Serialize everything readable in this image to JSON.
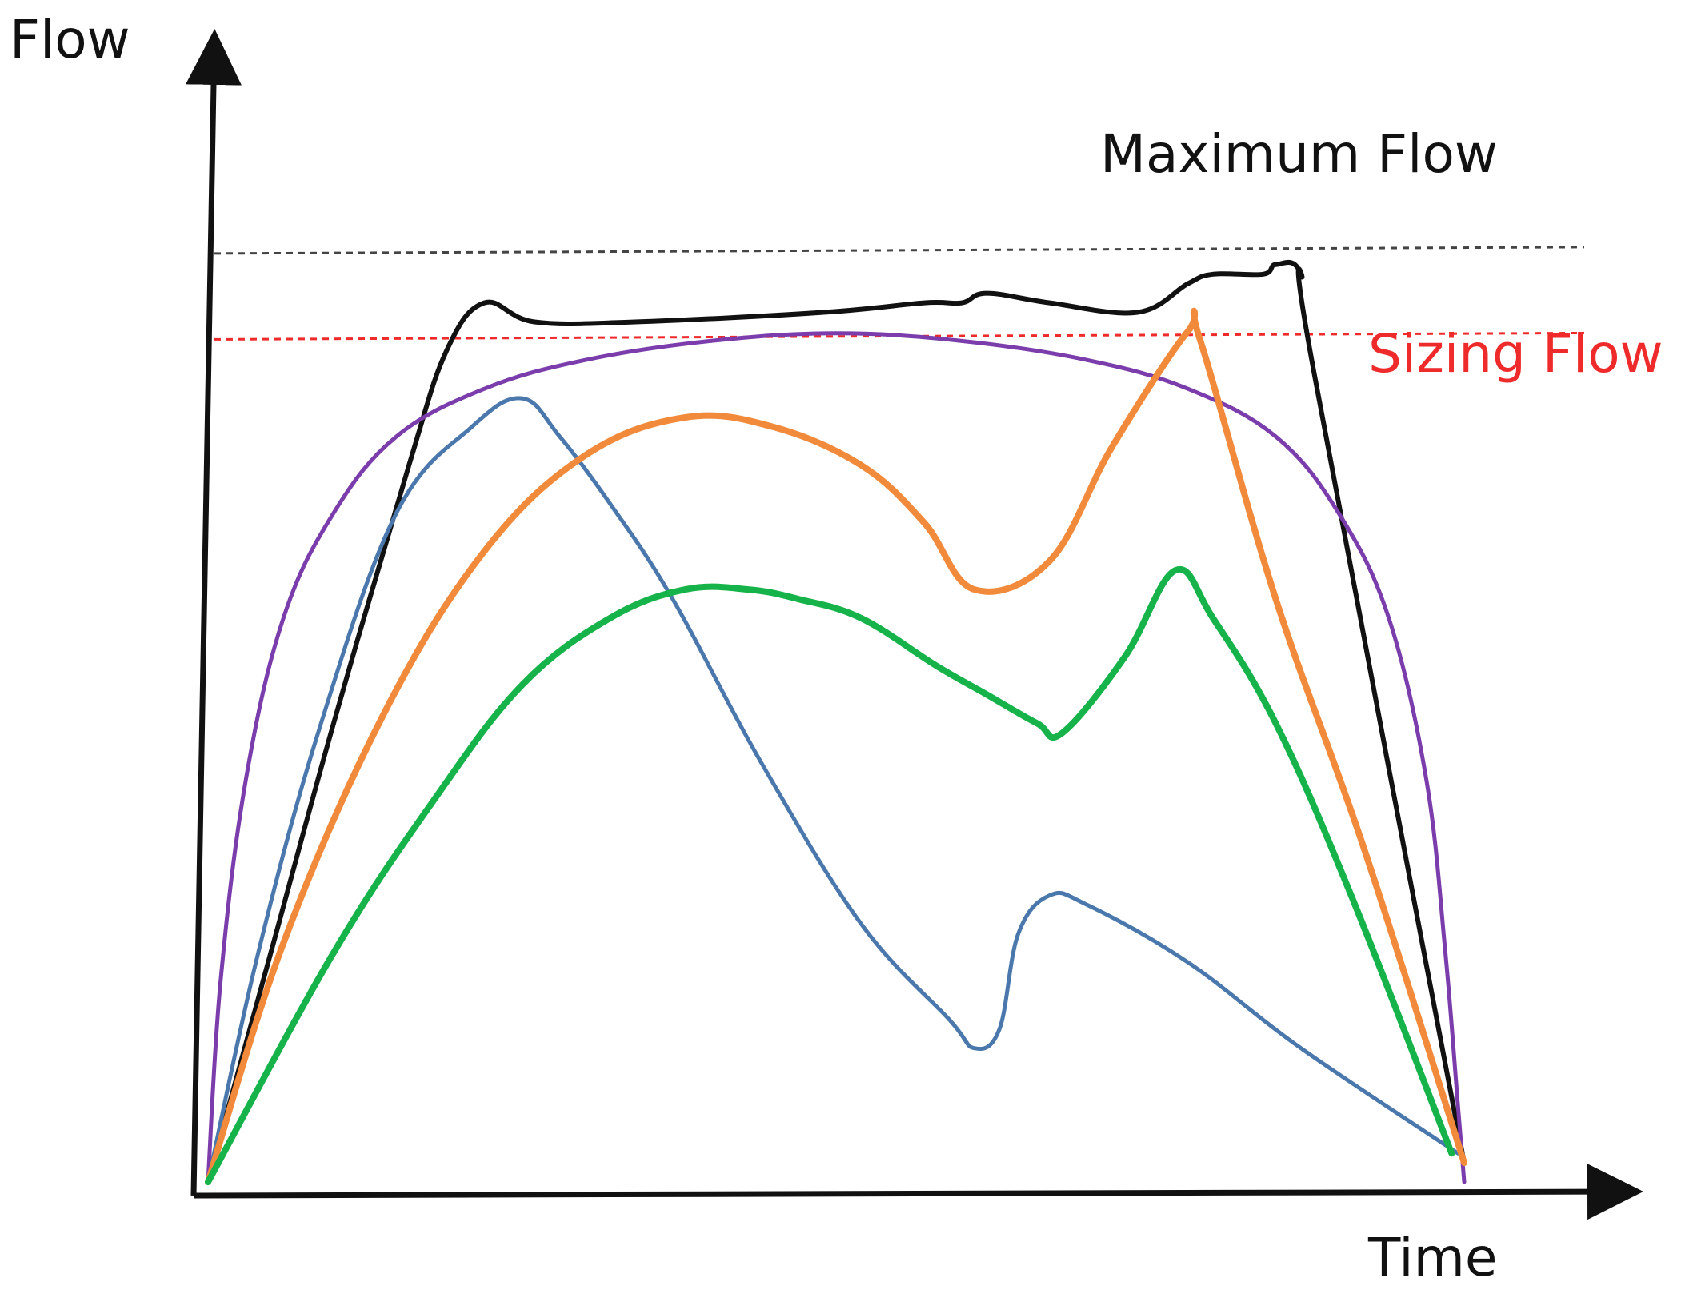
{
  "chart_data": {
    "type": "line",
    "title": "",
    "xlabel": "Time",
    "ylabel": "Flow",
    "xlim": [
      0,
      100
    ],
    "ylim": [
      0,
      100
    ],
    "grid": false,
    "reference_lines": [
      {
        "name": "maximum-flow",
        "label": "Maximum Flow",
        "y": 97.5,
        "color": "#444444"
      },
      {
        "name": "sizing-flow",
        "label": "Sizing Flow",
        "y": 88.5,
        "color": "#ee2a2a"
      }
    ],
    "series": [
      {
        "name": "black",
        "color": "#111111",
        "x": [
          0,
          5,
          10,
          16,
          19,
          22,
          26,
          34,
          49,
          57,
          60,
          62,
          67,
          74,
          78,
          80,
          84,
          85,
          87,
          88,
          100
        ],
        "y": [
          0,
          24,
          48,
          75,
          87,
          92,
          90,
          90,
          91,
          92,
          92,
          93,
          92,
          91,
          94,
          95,
          95,
          96,
          95,
          85,
          2
        ]
      },
      {
        "name": "purple",
        "color": "#7a3dab",
        "x": [
          0,
          1,
          3,
          6,
          10,
          15,
          22,
          30,
          40,
          50,
          60,
          70,
          78,
          85,
          90,
          94,
          97,
          98.5,
          99.5,
          100
        ],
        "y": [
          0,
          21,
          42,
          59,
          70,
          78,
          83,
          86,
          88,
          88.8,
          88,
          86,
          83,
          78,
          70,
          59,
          42,
          24,
          8,
          0
        ]
      },
      {
        "name": "blue",
        "color": "#4a78ad",
        "x": [
          0,
          4,
          9,
          15,
          21,
          25,
          28,
          32,
          37,
          44,
          52,
          59,
          61,
          63,
          64.5,
          67,
          70,
          78,
          87,
          99.5
        ],
        "y": [
          0,
          24,
          48,
          70,
          79,
          82,
          78,
          71,
          61,
          44,
          27,
          17,
          14,
          16,
          26,
          30,
          29,
          23,
          14,
          3
        ]
      },
      {
        "name": "orange",
        "color": "#f28a3b",
        "x": [
          0,
          6,
          14,
          22,
          30,
          38,
          45,
          52,
          57,
          61,
          67,
          72,
          78,
          79,
          85,
          92,
          100
        ],
        "y": [
          0,
          25,
          49,
          66,
          76,
          80,
          79,
          75,
          69,
          62,
          65,
          77,
          89,
          88,
          61,
          35,
          2
        ]
      },
      {
        "name": "green",
        "color": "#15b34a",
        "x": [
          0,
          10,
          18,
          25,
          32,
          38,
          43,
          47,
          52,
          58,
          62,
          66,
          68,
          73,
          77,
          80,
          85,
          91,
          99
        ],
        "y": [
          0,
          24,
          40,
          52,
          59,
          62,
          62,
          61,
          59,
          54,
          51,
          48,
          47,
          55,
          64,
          59,
          48,
          30,
          3
        ]
      }
    ]
  }
}
